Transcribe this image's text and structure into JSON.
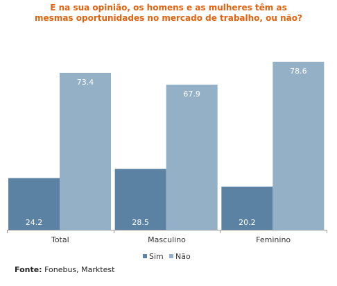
{
  "title": {
    "line1": "E na sua opinião, os homens e as mulheres têm as",
    "line2": "mesmas oportunidades no mercado de trabalho, ou não?"
  },
  "source": {
    "label": "Fonte:",
    "text": "Fonebus, Marktest"
  },
  "colors": {
    "title": "#e2620f",
    "sim": "#5b81a3",
    "nao": "#93b0c7"
  },
  "chart_data": {
    "type": "bar",
    "title": "E na sua opinião, os homens e as mulheres têm as mesmas oportunidades no mercado de trabalho, ou não?",
    "categories": [
      "Total",
      "Masculino",
      "Feminino"
    ],
    "series": [
      {
        "name": "Sim",
        "values": [
          24.2,
          28.5,
          20.2
        ],
        "color": "#5b81a3"
      },
      {
        "name": "Não",
        "values": [
          73.4,
          67.9,
          78.6
        ],
        "color": "#93b0c7"
      }
    ],
    "ylim": [
      0,
      80
    ],
    "grid": false,
    "legend": "bottom"
  }
}
